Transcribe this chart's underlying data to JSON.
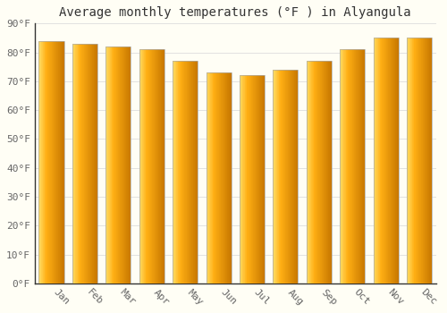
{
  "months": [
    "Jan",
    "Feb",
    "Mar",
    "Apr",
    "May",
    "Jun",
    "Jul",
    "Aug",
    "Sep",
    "Oct",
    "Nov",
    "Dec"
  ],
  "values": [
    84,
    83,
    82,
    81,
    77,
    73,
    72,
    74,
    77,
    81,
    85,
    85
  ],
  "bar_color_left": "#FFD070",
  "bar_color_mid": "#FFA820",
  "bar_color_right": "#E08000",
  "bar_edge_color": "#AAAAAA",
  "title": "Average monthly temperatures (°F ) in Alyangula",
  "ylim": [
    0,
    90
  ],
  "yticks": [
    0,
    10,
    20,
    30,
    40,
    50,
    60,
    70,
    80,
    90
  ],
  "ytick_labels": [
    "0°F",
    "10°F",
    "20°F",
    "30°F",
    "40°F",
    "50°F",
    "60°F",
    "70°F",
    "80°F",
    "90°F"
  ],
  "background_color": "#FFFEF5",
  "plot_bg_color": "#FFFEF5",
  "grid_color": "#DDDDDD",
  "title_fontsize": 10,
  "tick_fontsize": 8,
  "bar_width": 0.75
}
